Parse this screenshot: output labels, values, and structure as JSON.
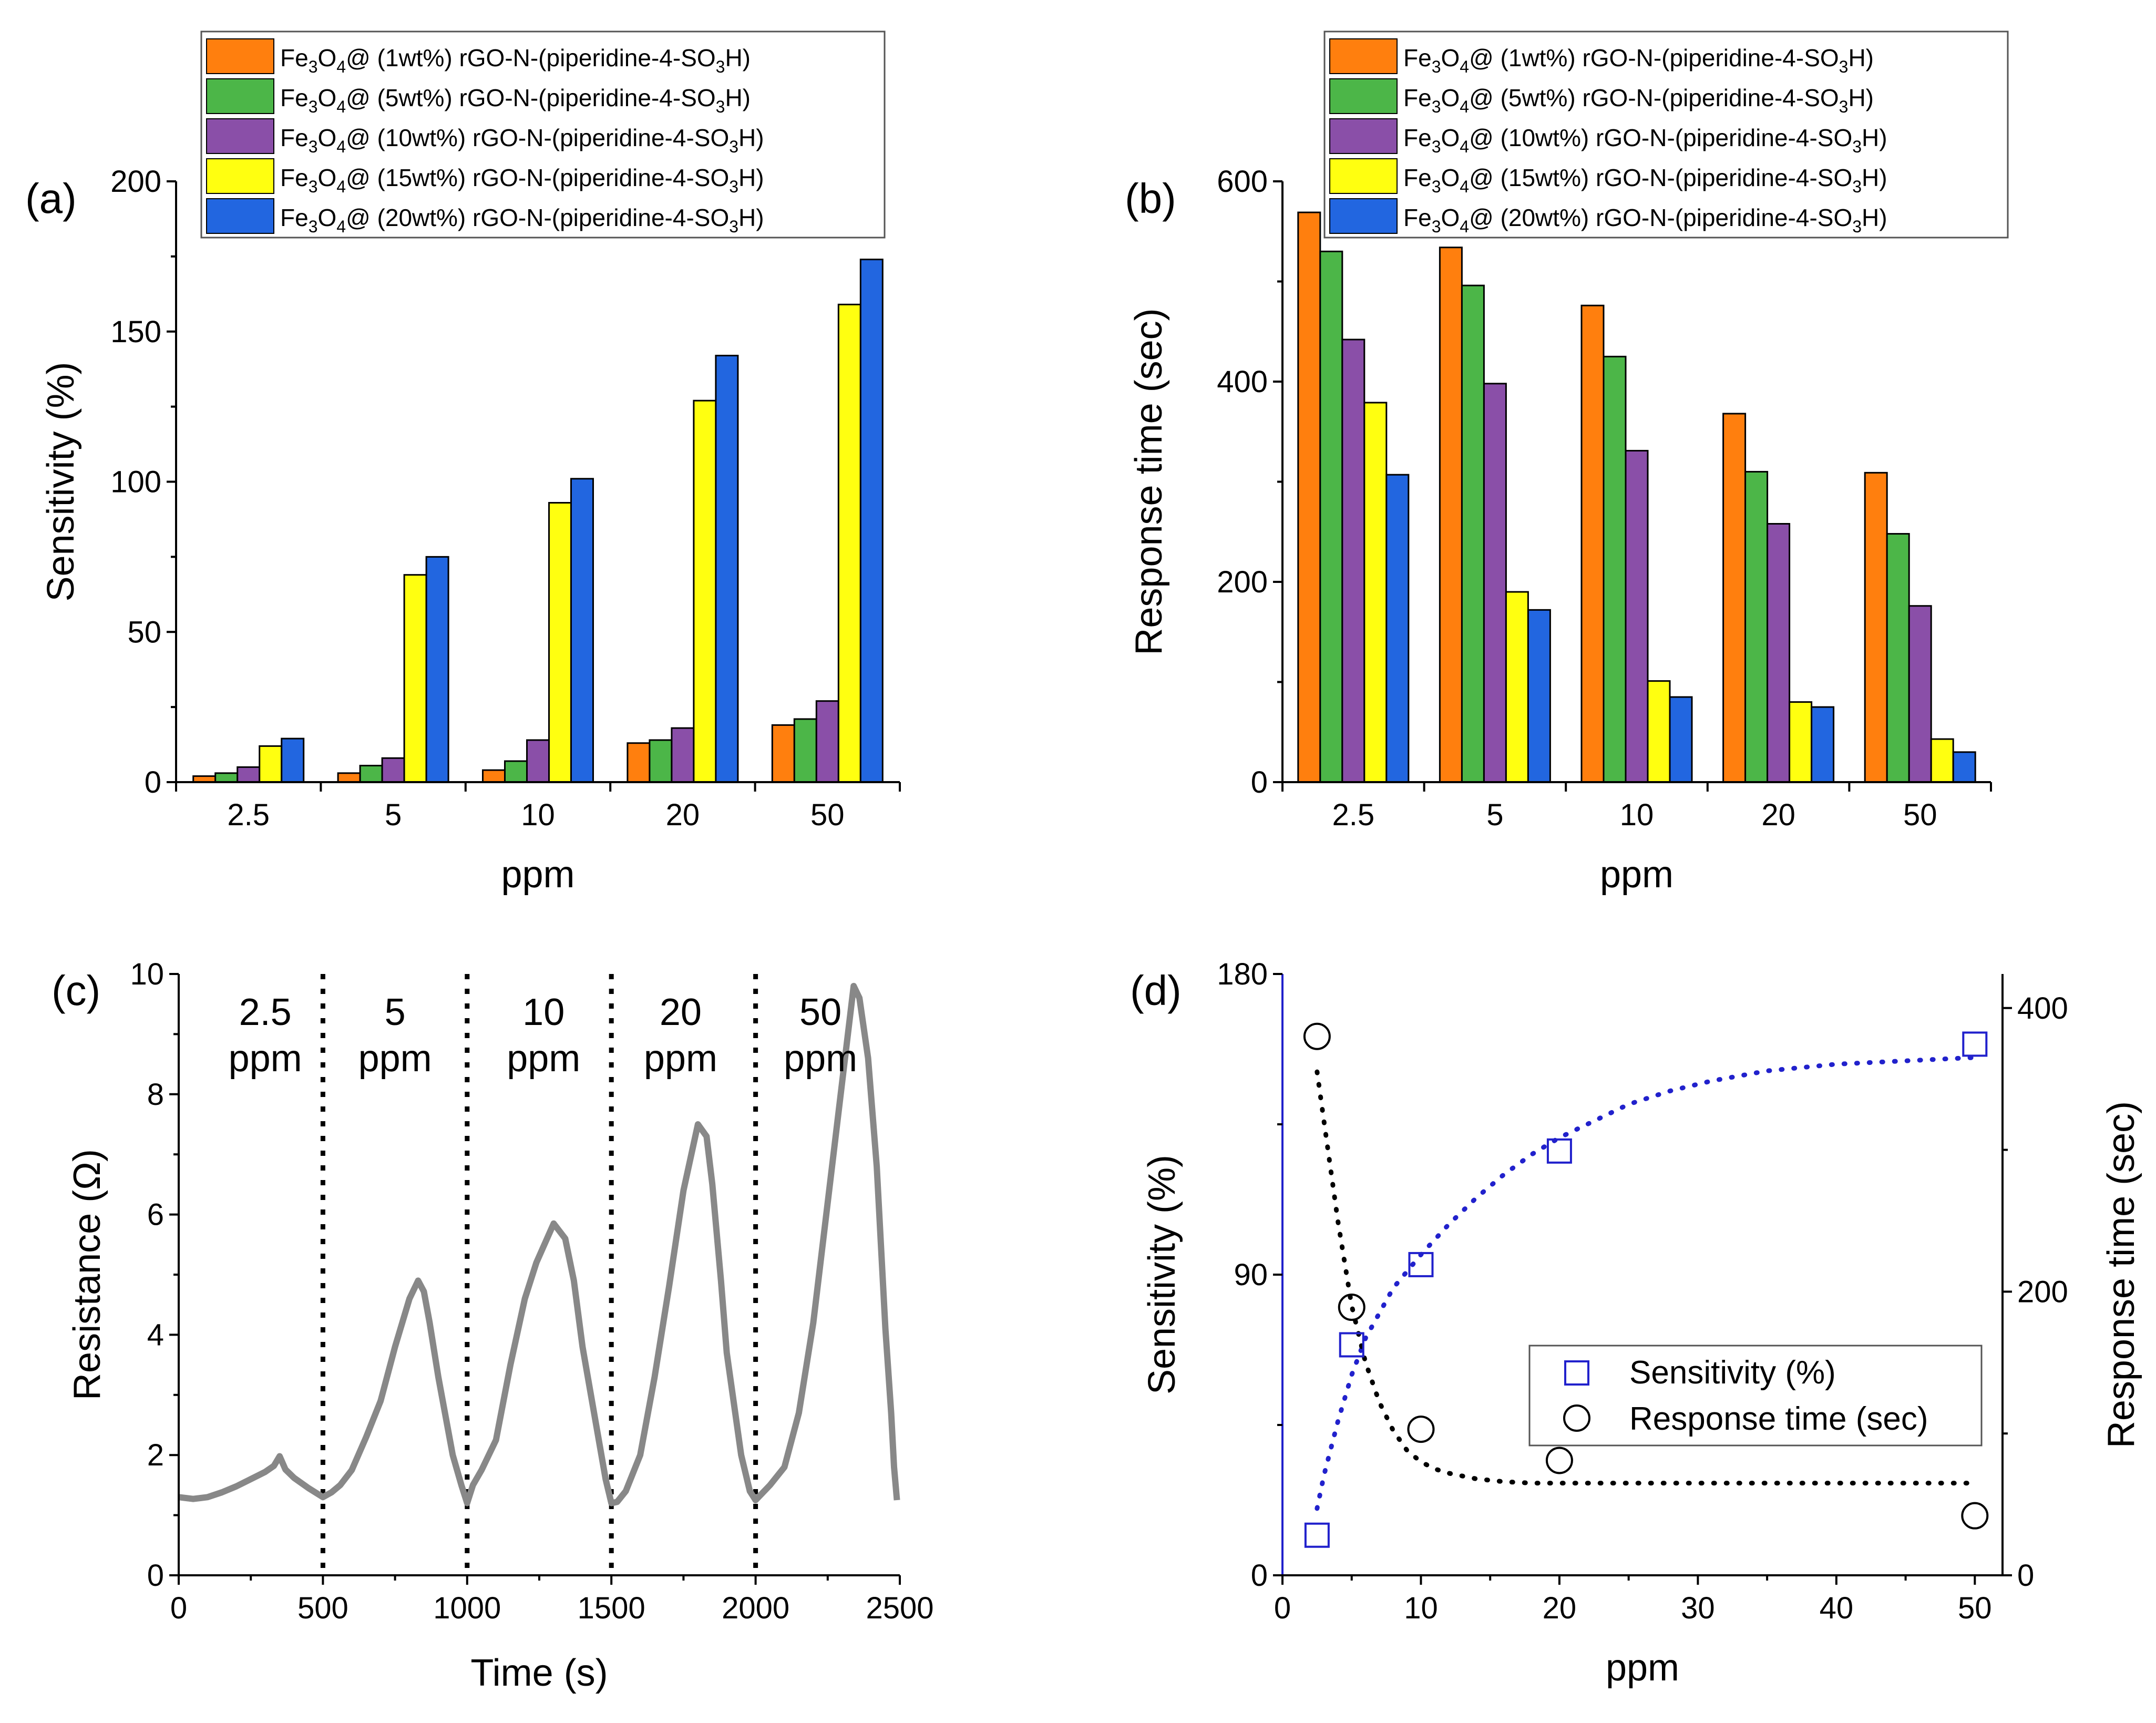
{
  "colors": {
    "series": [
      "#FF7F0E",
      "#4CB648",
      "#8A4FA8",
      "#FFFF10",
      "#2266E0"
    ],
    "resistance_line": "#888888",
    "sensitivity_marker": "#2121CC",
    "response_marker": "#000000",
    "right_axis_title": "#EE1111",
    "left_axis_line_d": "#2121CC"
  },
  "legend_labels": [
    {
      "prefix": "Fe",
      "sub1": "3",
      "mid": "O",
      "sub2": "4",
      "suffix": "@ (1wt%) rGO-N-(piperidine-4-SO",
      "sub3": "3",
      "end": "H)"
    },
    {
      "prefix": "Fe",
      "sub1": "3",
      "mid": "O",
      "sub2": "4",
      "suffix": "@ (5wt%) rGO-N-(piperidine-4-SO",
      "sub3": "3",
      "end": "H)"
    },
    {
      "prefix": "Fe",
      "sub1": "3",
      "mid": "O",
      "sub2": "4",
      "suffix": "@ (10wt%) rGO-N-(piperidine-4-SO",
      "sub3": "3",
      "end": "H)"
    },
    {
      "prefix": "Fe",
      "sub1": "3",
      "mid": "O",
      "sub2": "4",
      "suffix": "@ (15wt%) rGO-N-(piperidine-4-SO",
      "sub3": "3",
      "end": "H)"
    },
    {
      "prefix": "Fe",
      "sub1": "3",
      "mid": "O",
      "sub2": "4",
      "suffix": "@ (20wt%) rGO-N-(piperidine-4-SO",
      "sub3": "3",
      "end": "H)"
    }
  ],
  "chart_data": [
    {
      "panel": "(a)",
      "type": "bar",
      "xlabel": "ppm",
      "ylabel": "Sensitivity (%)",
      "ylim": [
        0,
        200
      ],
      "yticks": [
        0,
        50,
        100,
        150,
        200
      ],
      "categories": [
        "2.5",
        "5",
        "10",
        "20",
        "50"
      ],
      "series": [
        {
          "name": "Fe3O4@ (1wt%) rGO-N-(piperidine-4-SO3H)",
          "values": [
            2,
            3,
            4,
            13,
            19
          ]
        },
        {
          "name": "Fe3O4@ (5wt%) rGO-N-(piperidine-4-SO3H)",
          "values": [
            3,
            5.5,
            7,
            14,
            21
          ]
        },
        {
          "name": "Fe3O4@ (10wt%) rGO-N-(piperidine-4-SO3H)",
          "values": [
            5,
            8,
            14,
            18,
            27
          ]
        },
        {
          "name": "Fe3O4@ (15wt%) rGO-N-(piperidine-4-SO3H)",
          "values": [
            12,
            69,
            93,
            127,
            159
          ]
        },
        {
          "name": "Fe3O4@ (20wt%) rGO-N-(piperidine-4-SO3H)",
          "values": [
            14.5,
            75,
            101,
            142,
            174
          ]
        }
      ],
      "legend": "top-right"
    },
    {
      "panel": "(b)",
      "type": "bar",
      "xlabel": "ppm",
      "ylabel": "Response time (sec)",
      "ylim": [
        0,
        600
      ],
      "yticks": [
        0,
        200,
        400,
        600
      ],
      "categories": [
        "2.5",
        "5",
        "10",
        "20",
        "50"
      ],
      "series": [
        {
          "name": "Fe3O4@ (1wt%) rGO-N-(piperidine-4-SO3H)",
          "values": [
            569,
            534,
            476,
            368,
            309
          ]
        },
        {
          "name": "Fe3O4@ (5wt%) rGO-N-(piperidine-4-SO3H)",
          "values": [
            530,
            496,
            425,
            310,
            248
          ]
        },
        {
          "name": "Fe3O4@ (10wt%) rGO-N-(piperidine-4-SO3H)",
          "values": [
            442,
            398,
            331,
            258,
            176
          ]
        },
        {
          "name": "Fe3O4@ (15wt%) rGO-N-(piperidine-4-SO3H)",
          "values": [
            379,
            190,
            101,
            80,
            43
          ]
        },
        {
          "name": "Fe3O4@ (20wt%) rGO-N-(piperidine-4-SO3H)",
          "values": [
            307,
            172,
            85,
            75,
            30
          ]
        }
      ],
      "legend": "top"
    },
    {
      "panel": "(c)",
      "type": "line",
      "xlabel": "Time (s)",
      "ylabel": "Resistance (Ω)",
      "xlim": [
        0,
        2500
      ],
      "ylim": [
        0,
        10
      ],
      "xticks": [
        0,
        500,
        1000,
        1500,
        2000,
        2500
      ],
      "yticks": [
        0,
        2,
        4,
        6,
        8,
        10
      ],
      "dividers": [
        500,
        1000,
        1500,
        2000
      ],
      "annotations": [
        {
          "line1": "2.5",
          "line2": "ppm",
          "x": 300
        },
        {
          "line1": "5",
          "line2": "ppm",
          "x": 750
        },
        {
          "line1": "10",
          "line2": "ppm",
          "x": 1265
        },
        {
          "line1": "20",
          "line2": "ppm",
          "x": 1740
        },
        {
          "line1": "50",
          "line2": "ppm",
          "x": 2225
        }
      ],
      "x": [
        0,
        50,
        100,
        150,
        200,
        250,
        300,
        330,
        350,
        370,
        400,
        450,
        500,
        530,
        560,
        600,
        650,
        700,
        750,
        800,
        830,
        850,
        870,
        900,
        950,
        980,
        1000,
        1020,
        1050,
        1100,
        1150,
        1200,
        1240,
        1300,
        1340,
        1370,
        1400,
        1440,
        1480,
        1500,
        1520,
        1550,
        1600,
        1650,
        1700,
        1750,
        1800,
        1830,
        1850,
        1880,
        1900,
        1950,
        1980,
        2000,
        2020,
        2050,
        2100,
        2150,
        2200,
        2250,
        2300,
        2340,
        2360,
        2390,
        2420,
        2450,
        2470,
        2480,
        2490
      ],
      "y": [
        1.3,
        1.27,
        1.3,
        1.38,
        1.48,
        1.6,
        1.72,
        1.82,
        1.98,
        1.76,
        1.62,
        1.45,
        1.3,
        1.38,
        1.5,
        1.75,
        2.3,
        2.9,
        3.8,
        4.6,
        4.9,
        4.72,
        4.2,
        3.3,
        2.0,
        1.5,
        1.2,
        1.5,
        1.75,
        2.25,
        3.5,
        4.6,
        5.2,
        5.85,
        5.6,
        4.9,
        3.8,
        2.7,
        1.6,
        1.2,
        1.22,
        1.4,
        2.0,
        3.3,
        4.8,
        6.4,
        7.5,
        7.3,
        6.5,
        4.9,
        3.7,
        2.0,
        1.4,
        1.25,
        1.35,
        1.5,
        1.8,
        2.7,
        4.2,
        6.2,
        8.2,
        9.8,
        9.6,
        8.6,
        6.8,
        4.1,
        2.7,
        1.8,
        1.25
      ]
    },
    {
      "panel": "(d)",
      "type": "scatter",
      "xlabel": "ppm",
      "ylabel": "Sensitivity (%)",
      "ylabel_right": "Response time (sec)",
      "xlim": [
        0,
        52
      ],
      "ylim": [
        0,
        180
      ],
      "ylim_right": [
        0,
        424
      ],
      "xticks": [
        0,
        10,
        20,
        30,
        40,
        50
      ],
      "yticks": [
        0,
        90,
        180
      ],
      "yticks_right": [
        0,
        200,
        400
      ],
      "series": [
        {
          "name": "Sensitivity (%)",
          "axis": "left",
          "x": [
            2.5,
            5,
            10,
            20,
            50
          ],
          "values": [
            12,
            69,
            93,
            127,
            159
          ],
          "fit_x": [
            2.5,
            3,
            4,
            5,
            6,
            8,
            10,
            12,
            14,
            16,
            18,
            20,
            22,
            25,
            28,
            31,
            35,
            40,
            45,
            50
          ],
          "fit_y": [
            20,
            30,
            46,
            60,
            71,
            86,
            96,
            105,
            113,
            120,
            126,
            131,
            135,
            141,
            145,
            148,
            151,
            153,
            154,
            155
          ]
        },
        {
          "name": "Response time (sec)",
          "axis": "right",
          "x": [
            2.5,
            5,
            10,
            20,
            50
          ],
          "values": [
            380,
            189,
            103,
            81,
            42
          ],
          "fit_x": [
            2.5,
            3,
            4,
            5,
            6,
            7,
            8,
            9,
            10,
            11,
            12,
            14,
            16,
            18,
            20,
            25,
            30,
            40,
            50
          ],
          "fit_y": [
            355,
            320,
            250,
            190,
            150,
            122,
            102,
            88,
            80,
            75,
            72,
            68,
            66,
            65,
            65,
            65,
            65,
            65,
            65
          ]
        }
      ],
      "legend": "bottom-right"
    }
  ]
}
